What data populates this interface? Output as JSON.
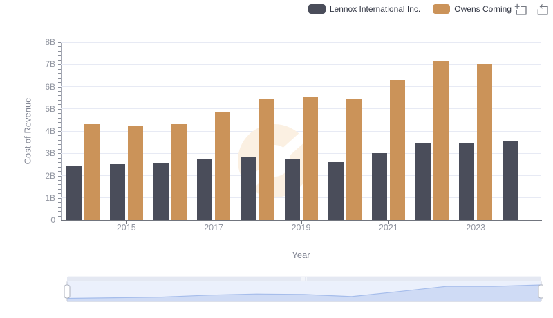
{
  "legend": {
    "items": [
      {
        "label": "Lennox International Inc.",
        "color": "#4A4D5A"
      },
      {
        "label": "Owens Corning",
        "color": "#CB9359"
      }
    ]
  },
  "toolbox": {
    "zoom_tooltip": "Zoom",
    "restore_tooltip": "Restore",
    "icon_color": "#767A83"
  },
  "chart_data": {
    "type": "bar",
    "title": "",
    "categories": [
      "2014",
      "2015",
      "2016",
      "2017",
      "2018",
      "2019",
      "2020",
      "2021",
      "2022",
      "2023",
      "2024"
    ],
    "series": [
      {
        "name": "Lennox International Inc.",
        "color": "#4A4D5A",
        "values": [
          2.45,
          2.5,
          2.56,
          2.72,
          2.81,
          2.77,
          2.6,
          3.01,
          3.44,
          3.44,
          3.56
        ]
      },
      {
        "name": "Owens Corning",
        "color": "#CB9359",
        "values": [
          4.32,
          4.22,
          4.3,
          4.84,
          5.44,
          5.56,
          5.46,
          6.28,
          7.16,
          7.02,
          null
        ]
      }
    ],
    "xlabel": "Year",
    "ylabel": "Cost of Revenue",
    "ylim": [
      0,
      8
    ],
    "unit": "B",
    "ytick_labels": [
      "0",
      "1B",
      "2B",
      "3B",
      "4B",
      "5B",
      "6B",
      "7B",
      "8B"
    ],
    "xtick_labels_shown": [
      "2015",
      "2017",
      "2019",
      "2021",
      "2023"
    ],
    "grid": true,
    "legend_position": "top-right"
  },
  "datazoom": {
    "shadow_series": "Lennox International Inc.",
    "range_start_pct": 0,
    "range_end_pct": 100,
    "colors": {
      "strip": "#E4E8F2",
      "panel": "#EBF0FC",
      "area_fill": "#CFDBF5",
      "area_line": "#A6BDEB",
      "handle_border": "#ACB1BD",
      "edge_line": "#C4CAD6"
    }
  },
  "watermark": {
    "name": "brand-watermark",
    "color": "#FBF0E2"
  }
}
